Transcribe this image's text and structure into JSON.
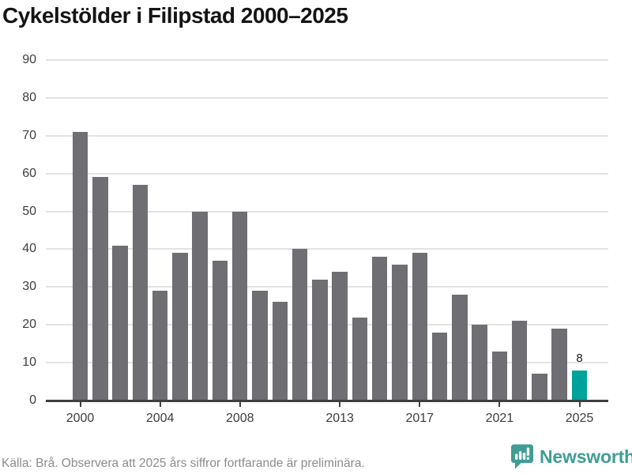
{
  "title": "Cykelstölder i Filipstad 2000–2025",
  "footer": {
    "source_text": "Källa: Brå. Observera att 2025 års siffror fortfarande är preliminära.",
    "brand": "Newsworthy"
  },
  "chart_data": {
    "type": "bar",
    "title": "Cykelstölder i Filipstad 2000–2025",
    "categories": [
      2000,
      2001,
      2002,
      2003,
      2004,
      2005,
      2006,
      2007,
      2008,
      2009,
      2010,
      2011,
      2012,
      2013,
      2014,
      2015,
      2016,
      2017,
      2018,
      2019,
      2020,
      2021,
      2022,
      2023,
      2024,
      2025
    ],
    "values": [
      71,
      59,
      41,
      57,
      29,
      39,
      50,
      37,
      50,
      29,
      26,
      40,
      32,
      34,
      22,
      38,
      36,
      39,
      18,
      28,
      20,
      13,
      21,
      7,
      19,
      8
    ],
    "highlight_index": 25,
    "highlight_label": "8",
    "x_tick_years": [
      2000,
      2004,
      2008,
      2013,
      2017,
      2021,
      2025
    ],
    "y_ticks": [
      0,
      10,
      20,
      30,
      40,
      50,
      60,
      70,
      80,
      90
    ],
    "ylim": [
      0,
      90
    ],
    "xlabel": "",
    "ylabel": "",
    "grid": "horizontal",
    "legend": "none",
    "colors": {
      "bar": "#6e6e73",
      "highlight": "#00a39b",
      "gridline": "#e3e3e3",
      "axis": "#3f3f42",
      "tick_label": "#3d3d3d",
      "title": "#141414",
      "source": "#8c8c91",
      "brand": "#3f9d95"
    }
  }
}
